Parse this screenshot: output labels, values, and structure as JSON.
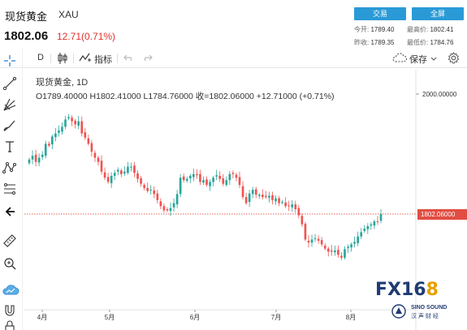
{
  "header": {
    "instrument_name": "现货黄金",
    "symbol": "XAU",
    "price": "1802.06",
    "change": "12.71(0.71%)",
    "buttons": {
      "trade": "交易",
      "fullscreen": "全屏"
    },
    "stats": {
      "open_label": "今开:",
      "open_value": "1789.40",
      "high_label": "最高价:",
      "high_value": "1802.41",
      "prev_close_label": "昨收:",
      "prev_close_value": "1789.35",
      "low_label": "最低价:",
      "low_value": "1784.76"
    }
  },
  "toolbar": {
    "interval": "D",
    "indicators_label": "指标",
    "save_label": "保存"
  },
  "chart_legend": {
    "title": "现货黄金, 1D",
    "ohlc_text": "O1789.40000   H1802.41000   L1784.76000   收=1802.06000   +12.71000 (+0.71%)"
  },
  "colors": {
    "up": "#4caf50",
    "down": "#e24d42",
    "candle_up": "#26a69a",
    "candle_down": "#ef5350",
    "accent": "#2a9ad6"
  },
  "chart_data": {
    "type": "candlestick",
    "y_axis": {
      "range": [
        1675,
        2020
      ],
      "ticks": [
        {
          "value": 2000,
          "label": "2000.00000"
        }
      ]
    },
    "x_axis": {
      "tick_labels": [
        "4月",
        "5月",
        "6月",
        "7月",
        "8月"
      ]
    },
    "current_price": {
      "value": 1802.06,
      "label": "1802.06000"
    },
    "closes": [
      1892,
      1898,
      1888,
      1895,
      1900,
      1918,
      1915,
      1930,
      1935,
      1940,
      1946,
      1958,
      1962,
      1955,
      1950,
      1955,
      1935,
      1928,
      1918,
      1905,
      1895,
      1888,
      1872,
      1862,
      1855,
      1865,
      1870,
      1875,
      1868,
      1872,
      1880,
      1880,
      1870,
      1860,
      1852,
      1845,
      1840,
      1842,
      1835,
      1825,
      1815,
      1808,
      1808,
      1812,
      1820,
      1835,
      1862,
      1858,
      1860,
      1865,
      1868,
      1866,
      1855,
      1858,
      1850,
      1855,
      1862,
      1866,
      1860,
      1852,
      1858,
      1868,
      1868,
      1862,
      1850,
      1830,
      1820,
      1836,
      1842,
      1834,
      1834,
      1830,
      1830,
      1832,
      1825,
      1828,
      1820,
      1822,
      1815,
      1815,
      1818,
      1810,
      1800,
      1785,
      1760,
      1755,
      1760,
      1762,
      1758,
      1752,
      1745,
      1740,
      1740,
      1742,
      1735,
      1730,
      1744,
      1748,
      1752,
      1756,
      1765,
      1772,
      1778,
      1782,
      1785,
      1790,
      1789,
      1802
    ]
  },
  "watermark": {
    "brand_main": "FX16",
    "brand_accent": "8",
    "brand_sub": "SINO SOUND",
    "brand_sub2": "汉 声 财 经"
  }
}
